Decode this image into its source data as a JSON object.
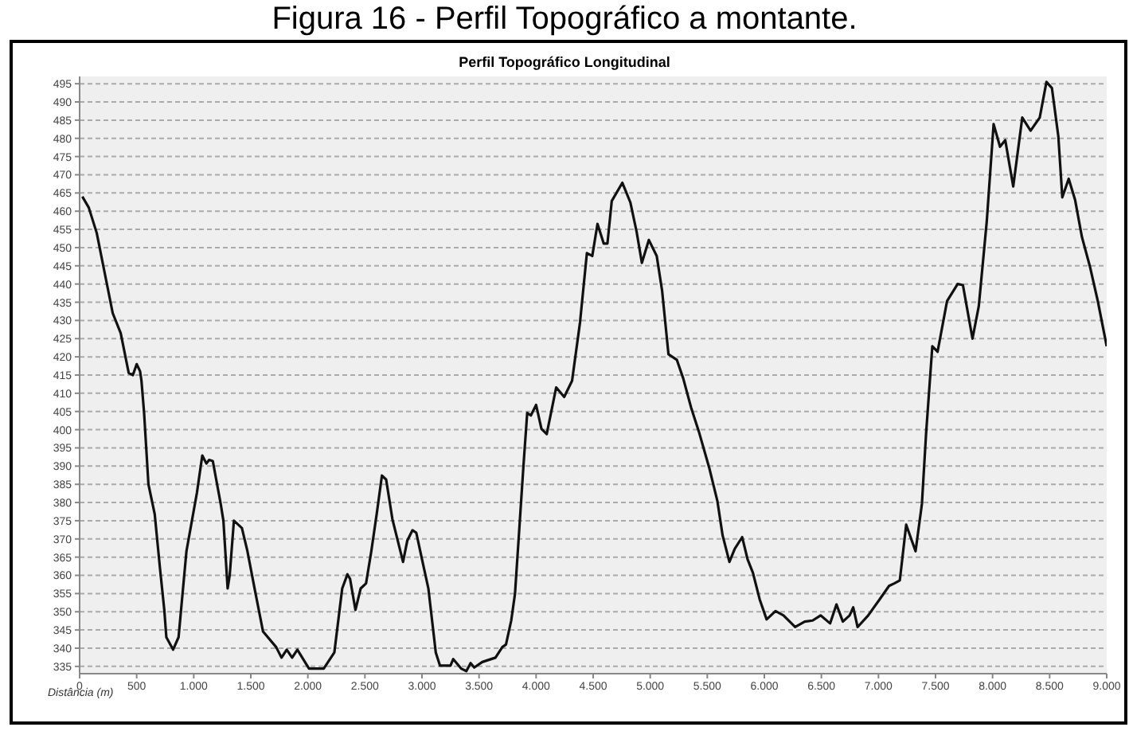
{
  "chart_data": {
    "type": "line",
    "title": "Perfil Topográfico Longitudinal",
    "xlabel": "Distância (m)",
    "annotations": [
      "Figura 16 - Perfil Topográfico a montante."
    ],
    "x": [
      24,
      80,
      150,
      220,
      290,
      360,
      430,
      467,
      500,
      530,
      542,
      565,
      603,
      658,
      704,
      742,
      760,
      819,
      867,
      936,
      1028,
      1075,
      1111,
      1135,
      1167,
      1236,
      1260,
      1297,
      1315,
      1352,
      1422,
      1468,
      1538,
      1607,
      1722,
      1769,
      1815,
      1862,
      1908,
      2010,
      2139,
      2232,
      2301,
      2347,
      2370,
      2417,
      2463,
      2510,
      2556,
      2603,
      2649,
      2686,
      2741,
      2788,
      2834,
      2871,
      2917,
      2950,
      2996,
      3056,
      3121,
      3158,
      3250,
      3274,
      3343,
      3389,
      3426,
      3458,
      3528,
      3644,
      3704,
      3736,
      3782,
      3815,
      3852,
      3889,
      3922,
      3954,
      4000,
      4047,
      4093,
      4176,
      4246,
      4315,
      4385,
      4445,
      4492,
      4538,
      4593,
      4625,
      4663,
      4756,
      4826,
      4881,
      4927,
      4988,
      5057,
      5104,
      5160,
      5233,
      5289,
      5358,
      5426,
      5519,
      5588,
      5634,
      5694,
      5741,
      5806,
      5853,
      5900,
      5959,
      6020,
      6098,
      6168,
      6270,
      6354,
      6423,
      6493,
      6576,
      6632,
      6688,
      6747,
      6779,
      6817,
      6910,
      7010,
      7093,
      7139,
      7187,
      7243,
      7325,
      7381,
      7417,
      7472,
      7518,
      7601,
      7694,
      7740,
      7824,
      7879,
      7949,
      8009,
      8065,
      8111,
      8181,
      8260,
      8333,
      8413,
      8472,
      8520,
      8576,
      8611,
      8667,
      8723,
      8783,
      8853,
      8922,
      9000
    ],
    "series": [
      {
        "color": "#111111",
        "values": [
          464,
          461,
          454,
          443,
          432,
          426.5,
          415.6,
          415,
          418,
          416,
          413.4,
          404.6,
          385,
          376.8,
          362,
          350.5,
          343,
          339.6,
          343,
          366.6,
          382.7,
          392.9,
          390.7,
          391.7,
          391.4,
          379.7,
          375,
          356.4,
          360,
          375,
          373,
          367,
          355.6,
          344.6,
          340.3,
          337.4,
          339.6,
          337.4,
          339.6,
          334.4,
          334.4,
          338.8,
          356.4,
          360.3,
          359,
          350.5,
          356.4,
          357.8,
          366.6,
          376.8,
          387.4,
          386.3,
          375.4,
          369.5,
          363.7,
          369.5,
          372.4,
          371.7,
          365,
          356.4,
          338.8,
          335.2,
          335.2,
          337,
          334.4,
          333.7,
          335.9,
          334.7,
          336.2,
          337.4,
          340.3,
          341,
          347.6,
          354.9,
          372.4,
          390,
          404.6,
          403.9,
          406.8,
          400.2,
          398.8,
          411.6,
          409,
          413.4,
          429.5,
          448.5,
          447.7,
          456.5,
          451.1,
          451.1,
          462.8,
          467.8,
          462.4,
          454.3,
          445.8,
          452.1,
          447.7,
          438.2,
          420.7,
          419.2,
          414.1,
          406.1,
          399.5,
          389.3,
          380.5,
          371,
          363.7,
          367.3,
          370.5,
          364.4,
          360.7,
          353.4,
          347.9,
          350.2,
          349,
          345.8,
          347.3,
          347.6,
          349,
          346.8,
          352,
          347.3,
          349,
          351.2,
          345.8,
          349,
          353.4,
          357.1,
          357.8,
          358.6,
          373.9,
          366.6,
          379.7,
          398.8,
          422.9,
          421.4,
          435.3,
          440,
          439.7,
          425,
          433.9,
          457.2,
          483.9,
          477.7,
          479.5,
          466.8,
          485.7,
          482.1,
          485.7,
          495.5,
          493.8,
          480.6,
          463.8,
          468.9,
          463.1,
          452.9,
          444.8,
          435.3,
          422.9
        ]
      }
    ],
    "xlim": [
      0,
      9000
    ],
    "xticks": [
      0,
      500,
      {
        "value": 1000,
        "label": "1.000"
      },
      {
        "value": 1500,
        "label": "1.500"
      },
      {
        "value": 2000,
        "label": "2.000"
      },
      {
        "value": 2500,
        "label": "2.500"
      },
      {
        "value": 3000,
        "label": "3.000"
      },
      {
        "value": 3500,
        "label": "3.500"
      },
      {
        "value": 4000,
        "label": "4.000"
      },
      {
        "value": 4500,
        "label": "4.500"
      },
      {
        "value": 5000,
        "label": "5.000"
      },
      {
        "value": 5500,
        "label": "5.500"
      },
      {
        "value": 6000,
        "label": "6.000"
      },
      {
        "value": 6500,
        "label": "6.500"
      },
      {
        "value": 7000,
        "label": "7.000"
      },
      {
        "value": 7500,
        "label": "7.500"
      },
      {
        "value": 8000,
        "label": "8.000"
      },
      {
        "value": 8500,
        "label": "8.500"
      },
      {
        "value": 9000,
        "label": "9.000"
      }
    ],
    "ylim": [
      333,
      497
    ],
    "yticks": [
      335,
      340,
      345,
      350,
      355,
      360,
      365,
      370,
      375,
      380,
      385,
      390,
      395,
      400,
      405,
      410,
      415,
      420,
      425,
      430,
      435,
      440,
      445,
      450,
      455,
      460,
      465,
      470,
      475,
      480,
      485,
      490,
      495
    ],
    "grid": "y",
    "marker": "none",
    "line_style": "solid"
  }
}
